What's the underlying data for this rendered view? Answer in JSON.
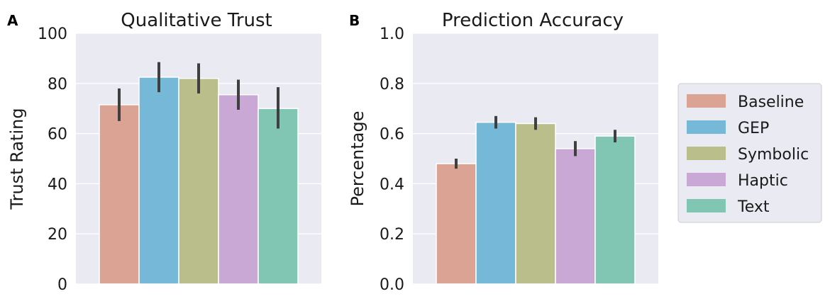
{
  "chart_data": [
    {
      "type": "bar",
      "panel_label": "A",
      "title": "Qualitative Trust",
      "xlabel": "",
      "ylabel": "Trust Rating",
      "ylim": [
        0,
        100
      ],
      "yticks": [
        "0",
        "20",
        "40",
        "60",
        "80",
        "100"
      ],
      "grid": true,
      "series": [
        {
          "name": "Baseline",
          "value": 71.5,
          "err_low": 65,
          "err_high": 78,
          "color": "#dba394"
        },
        {
          "name": "GEP",
          "value": 82.5,
          "err_low": 76.5,
          "err_high": 88.5,
          "color": "#76b8d7"
        },
        {
          "name": "Symbolic",
          "value": 82,
          "err_low": 76,
          "err_high": 88,
          "color": "#b9be8a"
        },
        {
          "name": "Haptic",
          "value": 75.5,
          "err_low": 69.5,
          "err_high": 81.5,
          "color": "#c9a8d6"
        },
        {
          "name": "Text",
          "value": 70,
          "err_low": 62,
          "err_high": 78.5,
          "color": "#80c6b2"
        }
      ]
    },
    {
      "type": "bar",
      "panel_label": "B",
      "title": "Prediction Accuracy",
      "xlabel": "",
      "ylabel": "Percentage",
      "ylim": [
        0,
        1.0
      ],
      "yticks": [
        "0.0",
        "0.2",
        "0.4",
        "0.6",
        "0.8",
        "1.0"
      ],
      "grid": true,
      "series": [
        {
          "name": "Baseline",
          "value": 0.48,
          "err_low": 0.46,
          "err_high": 0.5,
          "color": "#dba394"
        },
        {
          "name": "GEP",
          "value": 0.645,
          "err_low": 0.62,
          "err_high": 0.67,
          "color": "#76b8d7"
        },
        {
          "name": "Symbolic",
          "value": 0.64,
          "err_low": 0.615,
          "err_high": 0.665,
          "color": "#b9be8a"
        },
        {
          "name": "Haptic",
          "value": 0.54,
          "err_low": 0.51,
          "err_high": 0.57,
          "color": "#c9a8d6"
        },
        {
          "name": "Text",
          "value": 0.59,
          "err_low": 0.565,
          "err_high": 0.615,
          "color": "#80c6b2"
        }
      ]
    }
  ],
  "legend": {
    "placement": "right",
    "entries": [
      {
        "label": "Baseline",
        "color": "#dba394"
      },
      {
        "label": "GEP",
        "color": "#76b8d7"
      },
      {
        "label": "Symbolic",
        "color": "#b9be8a"
      },
      {
        "label": "Haptic",
        "color": "#c9a8d6"
      },
      {
        "label": "Text",
        "color": "#80c6b2"
      }
    ]
  },
  "colors": {
    "plot_background": "#eaeaf2",
    "grid": "#ffffff",
    "error_bar": "#3f3f3f"
  }
}
